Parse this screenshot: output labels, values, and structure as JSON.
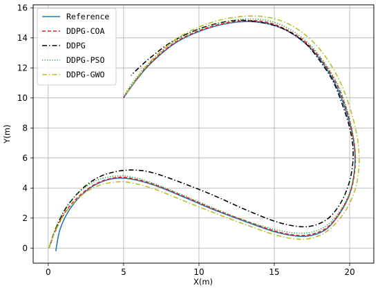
{
  "chart_data": {
    "type": "line",
    "xlabel": "X(m)",
    "ylabel": "Y(m)",
    "xlim": [
      -1,
      21.6
    ],
    "ylim": [
      -1.0,
      16.2
    ],
    "xticks": [
      0,
      5,
      10,
      15,
      20
    ],
    "yticks": [
      0,
      2,
      4,
      6,
      8,
      10,
      12,
      14,
      16
    ],
    "grid": true,
    "legend_position": "top-left",
    "series": [
      {
        "name": "Reference",
        "color": "#1f77b4",
        "dash": "solid",
        "points": [
          [
            0.5,
            -0.2
          ],
          [
            0.8,
            1.3
          ],
          [
            1.5,
            2.7
          ],
          [
            2.5,
            3.8
          ],
          [
            3.5,
            4.4
          ],
          [
            4.5,
            4.65
          ],
          [
            5.5,
            4.6
          ],
          [
            7,
            4.2
          ],
          [
            9,
            3.4
          ],
          [
            11,
            2.55
          ],
          [
            13,
            1.8
          ],
          [
            15,
            1.1
          ],
          [
            16.5,
            0.8
          ],
          [
            17.5,
            0.85
          ],
          [
            18.5,
            1.3
          ],
          [
            19.4,
            2.4
          ],
          [
            20.0,
            3.6
          ],
          [
            20.3,
            5.0
          ],
          [
            20.35,
            6.2
          ],
          [
            20.2,
            7.5
          ],
          [
            19.8,
            9.0
          ],
          [
            19.2,
            10.6
          ],
          [
            18.3,
            12.2
          ],
          [
            17.2,
            13.5
          ],
          [
            15.8,
            14.5
          ],
          [
            14.3,
            15.0
          ],
          [
            12.5,
            15.05
          ],
          [
            10.5,
            14.6
          ],
          [
            8.5,
            13.7
          ],
          [
            6.8,
            12.3
          ],
          [
            5.7,
            11.0
          ],
          [
            5.0,
            10.0
          ]
        ]
      },
      {
        "name": "DDPG-COA",
        "color": "#e31a1c",
        "dash": "dashed",
        "points": [
          [
            0.05,
            0.0
          ],
          [
            0.5,
            1.2
          ],
          [
            1.2,
            2.5
          ],
          [
            2.2,
            3.6
          ],
          [
            3.3,
            4.35
          ],
          [
            4.5,
            4.7
          ],
          [
            5.5,
            4.65
          ],
          [
            7,
            4.25
          ],
          [
            9,
            3.45
          ],
          [
            11,
            2.6
          ],
          [
            13,
            1.85
          ],
          [
            15,
            1.15
          ],
          [
            16.5,
            0.85
          ],
          [
            17.6,
            0.95
          ],
          [
            18.6,
            1.45
          ],
          [
            19.5,
            2.6
          ],
          [
            20.1,
            3.9
          ],
          [
            20.35,
            5.3
          ],
          [
            20.35,
            6.5
          ],
          [
            20.15,
            7.8
          ],
          [
            19.8,
            9.2
          ],
          [
            19.2,
            10.8
          ],
          [
            18.3,
            12.3
          ],
          [
            17.2,
            13.6
          ],
          [
            15.8,
            14.55
          ],
          [
            14.3,
            15.08
          ],
          [
            12.5,
            15.1
          ],
          [
            10.5,
            14.65
          ],
          [
            8.5,
            13.75
          ],
          [
            6.8,
            12.35
          ],
          [
            5.7,
            11.05
          ],
          [
            5.0,
            10.05
          ]
        ]
      },
      {
        "name": "DDPG",
        "color": "#000000",
        "dash": "dashdot",
        "points": [
          [
            0.05,
            0.0
          ],
          [
            0.5,
            1.3
          ],
          [
            1.2,
            2.7
          ],
          [
            2.2,
            3.9
          ],
          [
            3.3,
            4.7
          ],
          [
            4.5,
            5.1
          ],
          [
            5.7,
            5.2
          ],
          [
            7,
            5.0
          ],
          [
            9,
            4.3
          ],
          [
            11,
            3.5
          ],
          [
            13,
            2.6
          ],
          [
            15,
            1.8
          ],
          [
            16.5,
            1.45
          ],
          [
            17.6,
            1.5
          ],
          [
            18.6,
            2.0
          ],
          [
            19.4,
            3.0
          ],
          [
            19.95,
            4.3
          ],
          [
            20.2,
            5.6
          ],
          [
            20.2,
            6.9
          ],
          [
            19.95,
            8.2
          ],
          [
            19.5,
            9.6
          ],
          [
            18.9,
            11.1
          ],
          [
            18.0,
            12.5
          ],
          [
            17.0,
            13.7
          ],
          [
            15.6,
            14.6
          ],
          [
            14.0,
            15.05
          ],
          [
            12.3,
            15.15
          ],
          [
            10.3,
            14.7
          ],
          [
            8.3,
            13.8
          ],
          [
            6.8,
            12.7
          ],
          [
            5.9,
            11.9
          ],
          [
            5.5,
            11.5
          ]
        ]
      },
      {
        "name": "DDPG-PSO",
        "color": "#2ca02c",
        "dash": "dotted",
        "points": [
          [
            0.05,
            0.0
          ],
          [
            0.5,
            1.35
          ],
          [
            1.2,
            2.75
          ],
          [
            2.2,
            3.85
          ],
          [
            3.3,
            4.55
          ],
          [
            4.5,
            4.8
          ],
          [
            5.5,
            4.75
          ],
          [
            7,
            4.3
          ],
          [
            9,
            3.5
          ],
          [
            11,
            2.65
          ],
          [
            13,
            1.85
          ],
          [
            15,
            1.25
          ],
          [
            16.5,
            1.0
          ],
          [
            17.6,
            1.1
          ],
          [
            18.6,
            1.6
          ],
          [
            19.5,
            2.7
          ],
          [
            20.1,
            4.0
          ],
          [
            20.35,
            5.4
          ],
          [
            20.35,
            6.6
          ],
          [
            20.15,
            7.9
          ],
          [
            19.8,
            9.3
          ],
          [
            19.2,
            10.9
          ],
          [
            18.3,
            12.4
          ],
          [
            17.2,
            13.7
          ],
          [
            15.8,
            14.7
          ],
          [
            14.3,
            15.2
          ],
          [
            12.5,
            15.2
          ],
          [
            10.5,
            14.75
          ],
          [
            8.5,
            13.85
          ],
          [
            6.8,
            12.45
          ],
          [
            5.7,
            11.15
          ],
          [
            5.0,
            10.1
          ]
        ]
      },
      {
        "name": "DDPG-GWO",
        "color": "#bcbd22",
        "dash": "dashdot",
        "points": [
          [
            0.05,
            0.0
          ],
          [
            0.5,
            1.2
          ],
          [
            1.2,
            2.45
          ],
          [
            2.2,
            3.5
          ],
          [
            3.3,
            4.15
          ],
          [
            4.5,
            4.4
          ],
          [
            5.5,
            4.35
          ],
          [
            7,
            3.95
          ],
          [
            9,
            3.15
          ],
          [
            11,
            2.35
          ],
          [
            13,
            1.6
          ],
          [
            15,
            0.9
          ],
          [
            16.5,
            0.6
          ],
          [
            17.6,
            0.7
          ],
          [
            18.6,
            1.2
          ],
          [
            19.6,
            2.3
          ],
          [
            20.3,
            3.7
          ],
          [
            20.6,
            5.2
          ],
          [
            20.6,
            6.6
          ],
          [
            20.4,
            7.9
          ],
          [
            20.0,
            9.4
          ],
          [
            19.4,
            11.0
          ],
          [
            18.5,
            12.6
          ],
          [
            17.4,
            13.9
          ],
          [
            16.0,
            14.9
          ],
          [
            14.4,
            15.4
          ],
          [
            12.6,
            15.4
          ],
          [
            10.6,
            14.95
          ],
          [
            8.6,
            14.0
          ],
          [
            6.9,
            12.55
          ],
          [
            5.8,
            11.2
          ],
          [
            5.05,
            10.1
          ]
        ]
      }
    ]
  }
}
